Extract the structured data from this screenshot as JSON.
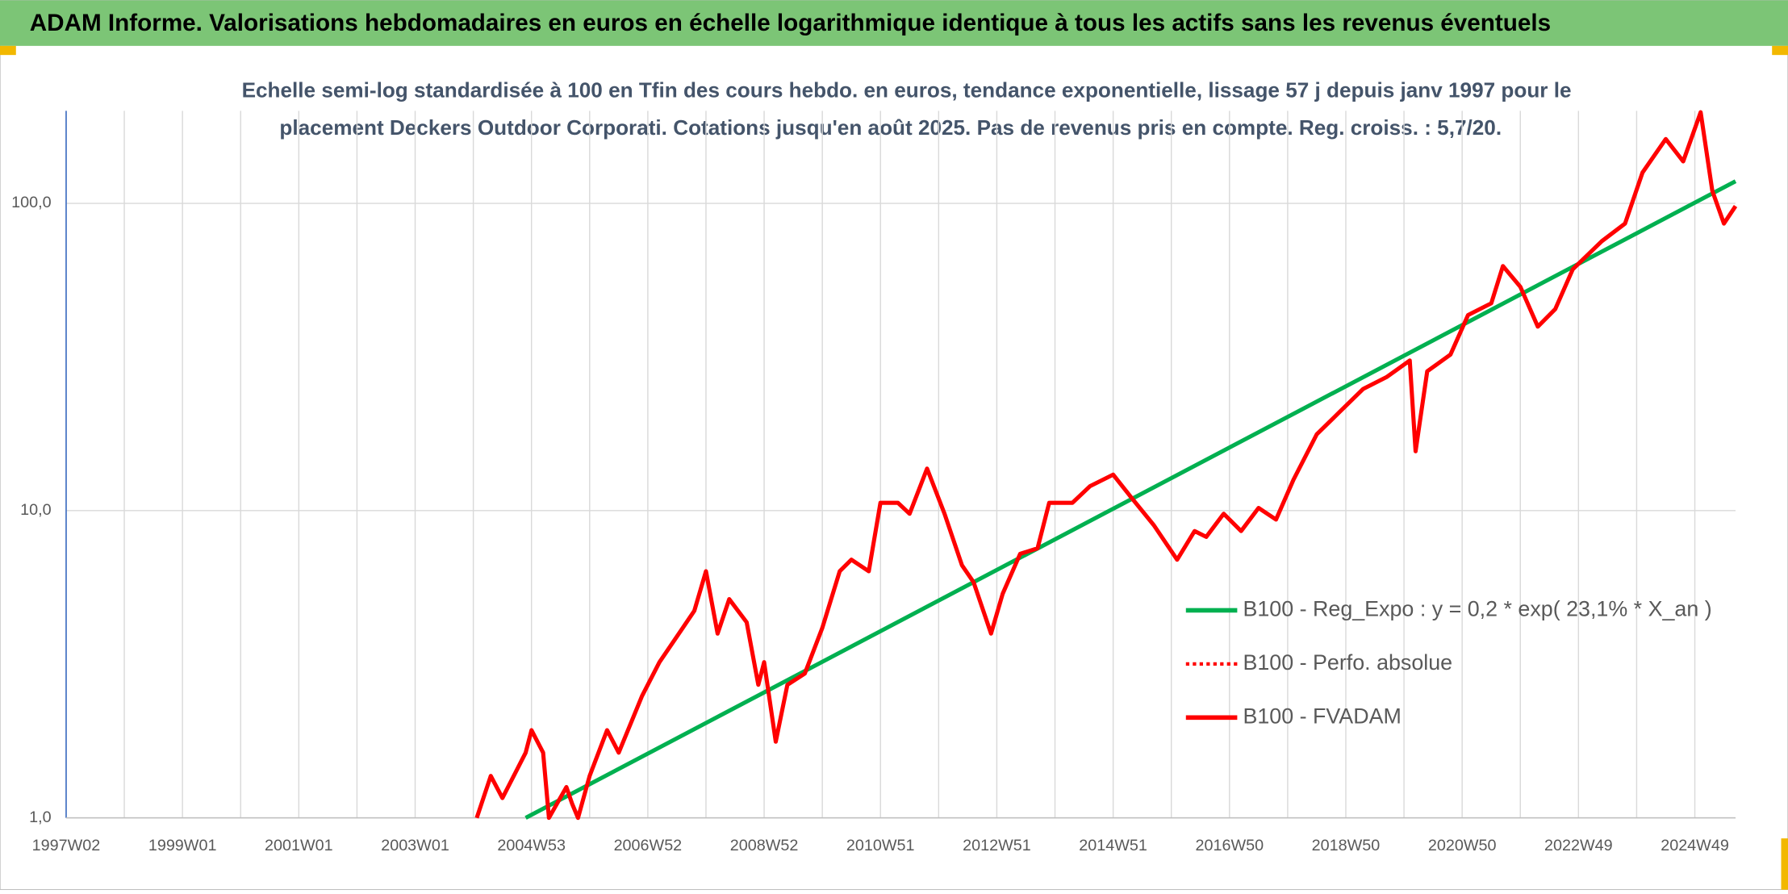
{
  "header": {
    "title": "ADAM Informe. Valorisations hebdomadaires en euros en échelle logarithmique identique à tous les actifs sans les revenus éventuels"
  },
  "chart_data": {
    "type": "line",
    "title": [
      "Echelle semi-log standardisée à 100 en Tfin des cours hebdo. en euros, tendance exponentielle, lissage 57 j depuis janv 1997 pour le",
      "placement Deckers Outdoor Corporati. Cotations jusqu'en août 2025. Pas de revenus pris en compte. Reg. croiss. : 5,7/20."
    ],
    "log_y": true,
    "grid": true,
    "legend": "right",
    "xlim": [
      1997.0,
      2025.7
    ],
    "ylim": [
      1,
      200
    ],
    "yticks": [
      {
        "value": 1,
        "label": "1,0"
      },
      {
        "value": 10,
        "label": "10,0"
      },
      {
        "value": 100,
        "label": "100,0"
      }
    ],
    "xticks": [
      {
        "value": 1997,
        "label": "1997W02"
      },
      {
        "value": 1999,
        "label": "1999W01"
      },
      {
        "value": 2001,
        "label": "2001W01"
      },
      {
        "value": 2003,
        "label": "2003W01"
      },
      {
        "value": 2005,
        "label": "2004W53"
      },
      {
        "value": 2007,
        "label": "2006W52"
      },
      {
        "value": 2009,
        "label": "2008W52"
      },
      {
        "value": 2011,
        "label": "2010W51"
      },
      {
        "value": 2013,
        "label": "2012W51"
      },
      {
        "value": 2015,
        "label": "2014W51"
      },
      {
        "value": 2017,
        "label": "2016W50"
      },
      {
        "value": 2019,
        "label": "2018W50"
      },
      {
        "value": 2021,
        "label": "2020W50"
      },
      {
        "value": 2023,
        "label": "2022W49"
      },
      {
        "value": 2025,
        "label": "2024W49"
      }
    ],
    "xgrid": [
      1998,
      2000,
      2002,
      2004,
      2006,
      2008,
      2010,
      2012,
      2014,
      2016,
      2018,
      2020,
      2022,
      2024
    ],
    "series": [
      {
        "name": "B100 - Reg_Expo : y = 0,2 * exp( 23,1% *  X_an )",
        "color": "#00b050",
        "style": "solid",
        "x": [
          2004.9,
          2025.7
        ],
        "values": [
          1.0,
          118
        ]
      },
      {
        "name": "B100 - Perfo. absolue",
        "color": "#ff0000",
        "style": "dotted",
        "x": [],
        "values": []
      },
      {
        "name": "B100 - FVADAM",
        "color": "#ff0000",
        "style": "solid",
        "x": [
          2004.06,
          2004.3,
          2004.5,
          2004.9,
          2005.0,
          2005.2,
          2005.3,
          2005.6,
          2005.7,
          2005.8,
          2006.0,
          2006.3,
          2006.5,
          2006.9,
          2007.2,
          2007.6,
          2007.8,
          2008.0,
          2008.2,
          2008.4,
          2008.7,
          2008.9,
          2009.0,
          2009.2,
          2009.4,
          2009.7,
          2010.0,
          2010.3,
          2010.5,
          2010.8,
          2011.0,
          2011.3,
          2011.5,
          2011.8,
          2012.1,
          2012.4,
          2012.6,
          2012.9,
          2013.1,
          2013.4,
          2013.7,
          2013.9,
          2014.3,
          2014.6,
          2015.0,
          2015.3,
          2015.7,
          2016.1,
          2016.4,
          2016.6,
          2016.9,
          2017.2,
          2017.5,
          2017.8,
          2018.1,
          2018.5,
          2018.9,
          2019.3,
          2019.7,
          2020.1,
          2020.2,
          2020.4,
          2020.8,
          2021.1,
          2021.5,
          2021.7,
          2022.0,
          2022.3,
          2022.6,
          2022.9,
          2023.4,
          2023.8,
          2024.1,
          2024.5,
          2024.8,
          2025.1,
          2025.3,
          2025.5,
          2025.7
        ],
        "values": [
          1.0,
          1.37,
          1.16,
          1.63,
          1.93,
          1.63,
          1.0,
          1.26,
          1.11,
          1.0,
          1.37,
          1.93,
          1.63,
          2.49,
          3.21,
          4.15,
          4.72,
          6.35,
          3.98,
          5.15,
          4.33,
          2.71,
          3.21,
          1.77,
          2.71,
          2.95,
          4.15,
          6.35,
          6.92,
          6.35,
          10.6,
          10.6,
          9.77,
          13.7,
          9.77,
          6.64,
          5.85,
          3.98,
          5.36,
          7.23,
          7.54,
          10.6,
          10.6,
          12.0,
          13.1,
          11.1,
          8.96,
          6.92,
          8.58,
          8.21,
          9.77,
          8.58,
          10.2,
          9.35,
          12.6,
          17.7,
          21.0,
          24.9,
          27.2,
          30.8,
          15.6,
          28.4,
          32.2,
          43.3,
          47.3,
          62.5,
          53.5,
          39.7,
          45.3,
          61.0,
          75.3,
          86.0,
          126,
          162,
          137,
          198,
          110,
          86,
          98
        ]
      }
    ]
  }
}
